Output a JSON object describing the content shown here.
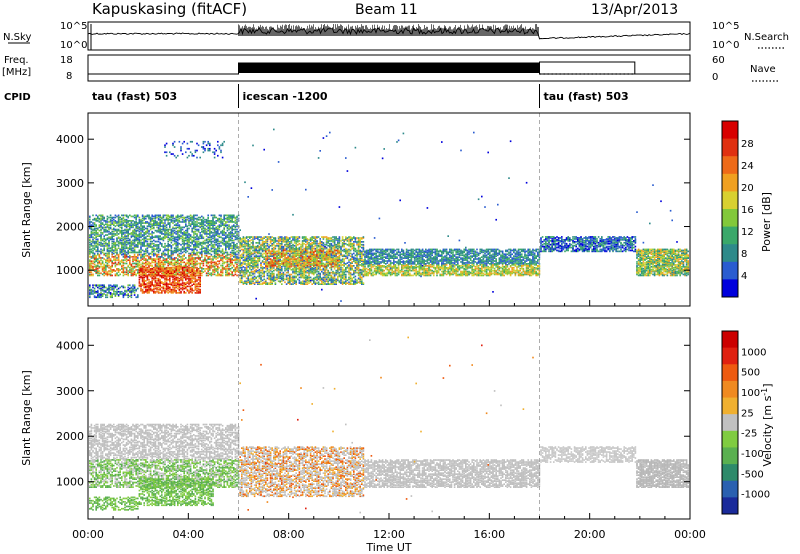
{
  "header": {
    "station": "Kapuskasing (fitACF)",
    "beam": "Beam 11",
    "date": "13/Apr/2013"
  },
  "top_panels": {
    "nsky": {
      "label": "N.Sky",
      "tick_labels": [
        "10^5",
        "10^0"
      ],
      "right_label": "N.Search",
      "right_tick_labels": [
        "10^5",
        "10^0"
      ],
      "series": [
        {
          "segment": "00:00-06:00",
          "level": "low"
        },
        {
          "segment": "06:00-18:00",
          "level": "high, noisy"
        },
        {
          "segment": "18:00-24:00",
          "level": "low"
        }
      ]
    },
    "freq": {
      "label_line1": "Freq.",
      "label_line2": "[MHz]",
      "tick_labels": [
        "18",
        "8"
      ],
      "right_label": "Nave",
      "right_tick_labels": [
        "60",
        "0"
      ]
    },
    "cpid": {
      "label": "CPID",
      "segments": [
        {
          "text": "tau (fast) 503",
          "start_h": 0
        },
        {
          "text": "icescan -1200",
          "start_h": 6
        },
        {
          "text": "tau (fast) 503",
          "start_h": 18
        }
      ]
    }
  },
  "chart_data": [
    {
      "type": "heatmap",
      "title": "",
      "xlabel": "Time UT",
      "ylabel": "Slant Range [km]",
      "xlim": [
        0,
        24
      ],
      "ylim": [
        180,
        4600
      ],
      "x_tick_labels": [
        "00:00",
        "04:00",
        "08:00",
        "12:00",
        "16:00",
        "20:00",
        "00:00"
      ],
      "y_ticks": [
        1000,
        2000,
        3000,
        4000
      ],
      "colorbar": {
        "label": "Power [dB]",
        "tick_labels": [
          "4",
          "8",
          "12",
          "16",
          "20",
          "24",
          "28"
        ],
        "range": [
          0,
          30
        ],
        "colors": [
          "#0000dd",
          "#2a5cd0",
          "#2e8a8a",
          "#3aa86a",
          "#82c83a",
          "#d8d030",
          "#f0a020",
          "#ee6a18",
          "#e03010",
          "#d80000"
        ]
      }
    },
    {
      "type": "heatmap",
      "title": "",
      "xlabel": "Time UT",
      "ylabel": "Slant Range [km]",
      "xlim": [
        0,
        24
      ],
      "ylim": [
        180,
        4600
      ],
      "x_tick_labels": [
        "00:00",
        "04:00",
        "08:00",
        "12:00",
        "16:00",
        "20:00",
        "00:00"
      ],
      "y_ticks": [
        1000,
        2000,
        3000,
        4000
      ],
      "colorbar": {
        "label": "Velocity [m s-1]",
        "tick_labels": [
          "1000",
          "500",
          "100",
          "25",
          "-25",
          "-100",
          "-500",
          "-1000"
        ],
        "colors": [
          "#1a2a9a",
          "#2a60b0",
          "#2e8a6a",
          "#5ab050",
          "#80cc40",
          "#c0c0c0",
          "#f0b030",
          "#f08a20",
          "#ee5a10",
          "#e02010",
          "#cc0000"
        ]
      }
    }
  ],
  "axis_labels": {
    "x_title": "Time UT",
    "y_title": "Slant Range [km]",
    "power_label": "Power [dB]",
    "velocity_label": "Velocity [m s",
    "velocity_exp": "-1",
    "velocity_close": "]"
  }
}
